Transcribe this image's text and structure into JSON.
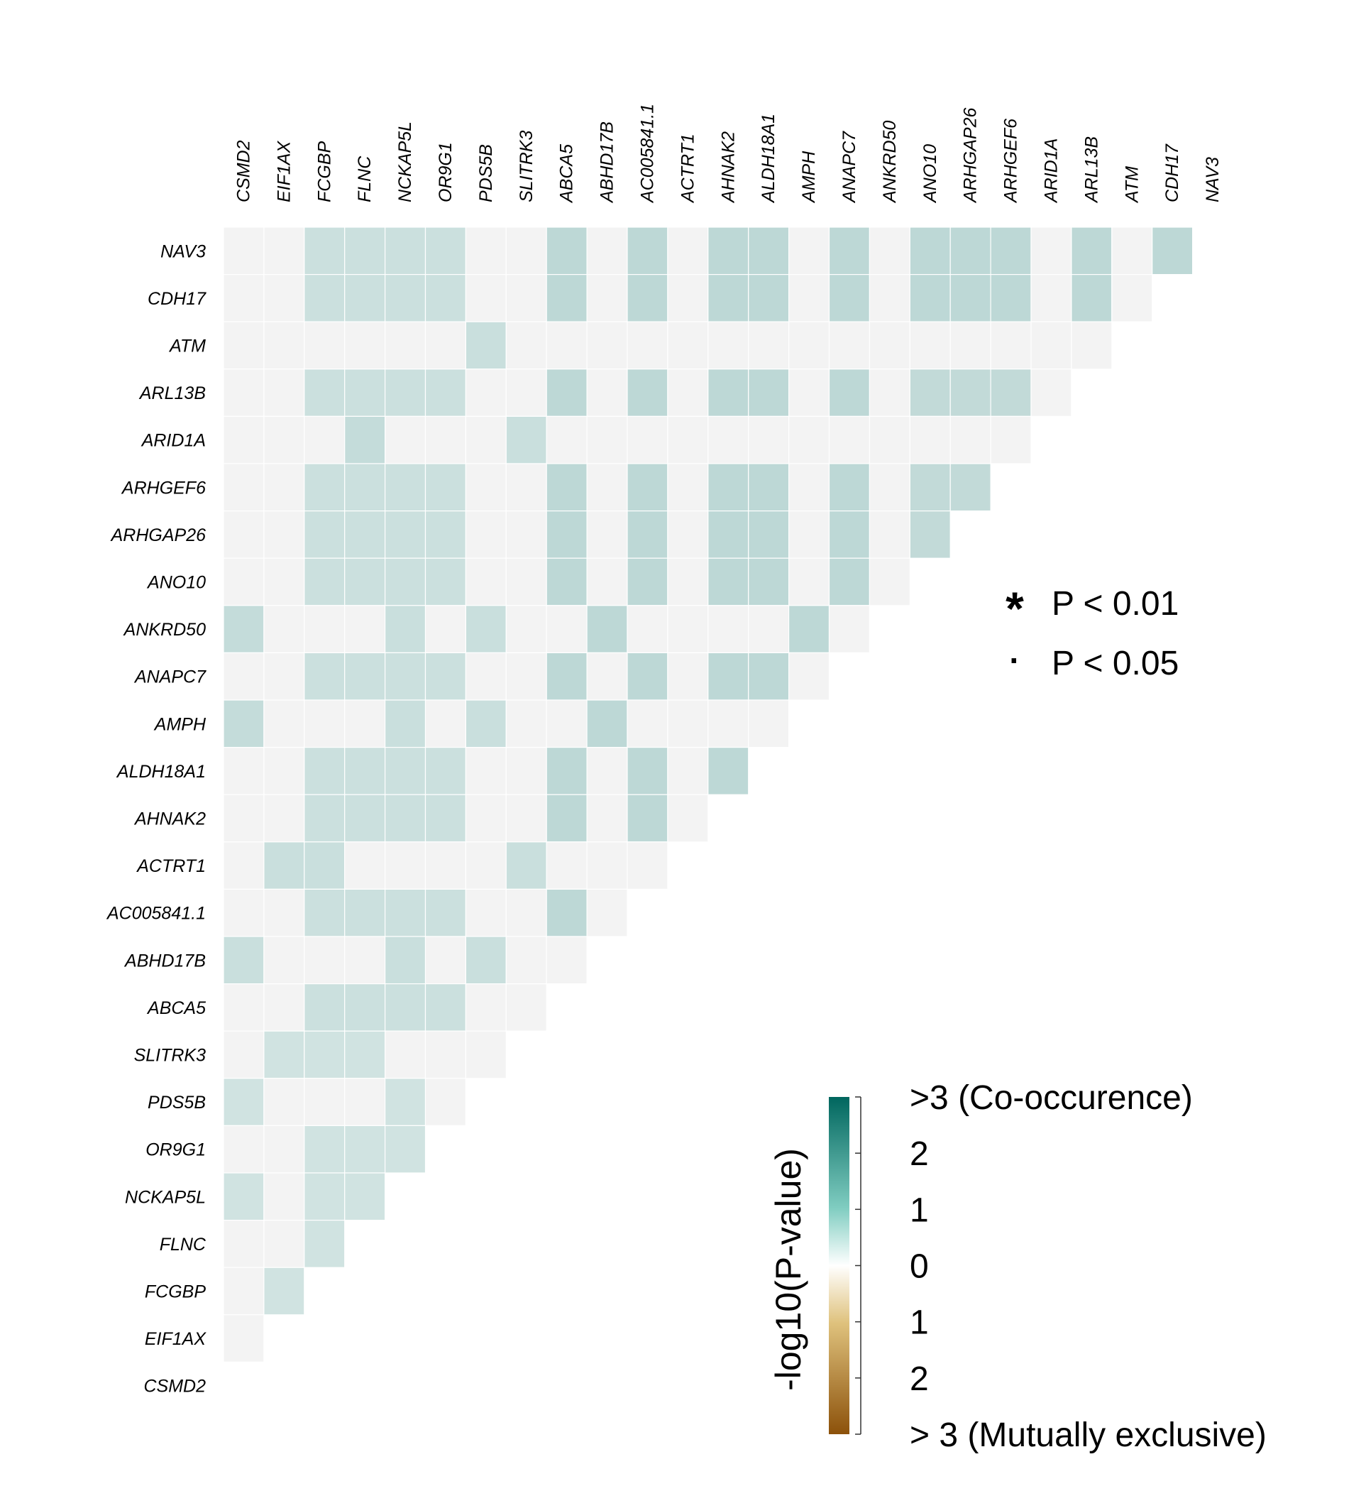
{
  "chart_data": {
    "type": "heatmap",
    "description_layout": "lower-triangular gene co-occurrence matrix",
    "columns": [
      "CSMD2",
      "EIF1AX",
      "FCGBP",
      "FLNC",
      "NCKAP5L",
      "OR9G1",
      "PDS5B",
      "SLITRK3",
      "ABCA5",
      "ABHD17B",
      "AC005841.1",
      "ACTRT1",
      "AHNAK2",
      "ALDH18A1",
      "AMPH",
      "ANAPC7",
      "ANKRD50",
      "ANO10",
      "ARHGAP26",
      "ARHGEF6",
      "ARID1A",
      "ARL13B",
      "ATM",
      "CDH17",
      "NAV3"
    ],
    "rows": [
      "NAV3",
      "CDH17",
      "ATM",
      "ARL13B",
      "ARID1A",
      "ARHGEF6",
      "ARHGAP26",
      "ANO10",
      "ANKRD50",
      "ANAPC7",
      "AMPH",
      "ALDH18A1",
      "AHNAK2",
      "ACTRT1",
      "AC005841.1",
      "ABHD17B",
      "ABCA5",
      "SLITRK3",
      "PDS5B",
      "OR9G1",
      "NCKAP5L",
      "FLNC",
      "FCGBP",
      "EIF1AX",
      "CSMD2"
    ],
    "values": [
      [
        0,
        0,
        0.45,
        0.45,
        0.45,
        0.45,
        0,
        0,
        0.75,
        0,
        0.75,
        0,
        0.75,
        0.75,
        0,
        0.75,
        0,
        0.75,
        0.75,
        0.75,
        0,
        0.75,
        0,
        0.75
      ],
      [
        0,
        0,
        0.45,
        0.45,
        0.45,
        0.45,
        0,
        0,
        0.75,
        0,
        0.75,
        0,
        0.75,
        0.75,
        0,
        0.75,
        0,
        0.75,
        0.75,
        0.75,
        0,
        0.75,
        0
      ],
      [
        0,
        0,
        0,
        0,
        0,
        0,
        0.5,
        0,
        0,
        0,
        0,
        0,
        0,
        0,
        0,
        0,
        0,
        0,
        0,
        0,
        0,
        0
      ],
      [
        0,
        0,
        0.45,
        0.45,
        0.45,
        0.45,
        0,
        0,
        0.75,
        0,
        0.75,
        0,
        0.75,
        0.75,
        0,
        0.75,
        0,
        0.65,
        0.65,
        0.65,
        0
      ],
      [
        0,
        0,
        0,
        0.6,
        0,
        0,
        0,
        0.5,
        0,
        0,
        0,
        0,
        0,
        0,
        0,
        0,
        0,
        0,
        0,
        0
      ],
      [
        0,
        0,
        0.45,
        0.45,
        0.45,
        0.45,
        0,
        0,
        0.75,
        0,
        0.75,
        0,
        0.75,
        0.75,
        0,
        0.75,
        0,
        0.65,
        0.65
      ],
      [
        0,
        0,
        0.45,
        0.45,
        0.45,
        0.45,
        0,
        0,
        0.75,
        0,
        0.75,
        0,
        0.75,
        0.75,
        0,
        0.75,
        0,
        0.65
      ],
      [
        0,
        0,
        0.45,
        0.45,
        0.45,
        0.45,
        0,
        0,
        0.75,
        0,
        0.75,
        0,
        0.75,
        0.75,
        0,
        0.75,
        0
      ],
      [
        0.6,
        0,
        0,
        0,
        0.5,
        0,
        0.5,
        0,
        0,
        0.75,
        0,
        0,
        0,
        0,
        0.75,
        0
      ],
      [
        0,
        0,
        0.45,
        0.45,
        0.45,
        0.45,
        0,
        0,
        0.75,
        0,
        0.75,
        0,
        0.75,
        0.75,
        0
      ],
      [
        0.6,
        0,
        0,
        0,
        0.5,
        0,
        0.5,
        0,
        0,
        0.75,
        0,
        0,
        0,
        0
      ],
      [
        0,
        0,
        0.45,
        0.45,
        0.45,
        0.45,
        0,
        0,
        0.75,
        0,
        0.75,
        0,
        0.75
      ],
      [
        0,
        0,
        0.45,
        0.45,
        0.45,
        0.45,
        0,
        0,
        0.75,
        0,
        0.75,
        0
      ],
      [
        0,
        0.5,
        0.5,
        0,
        0,
        0,
        0,
        0.5,
        0,
        0,
        0
      ],
      [
        0,
        0,
        0.45,
        0.45,
        0.45,
        0.45,
        0,
        0,
        0.75,
        0
      ],
      [
        0.5,
        0,
        0,
        0,
        0.5,
        0,
        0.5,
        0,
        0
      ],
      [
        0,
        0,
        0.45,
        0.45,
        0.45,
        0.45,
        0,
        0
      ],
      [
        0,
        0.35,
        0.35,
        0.35,
        0,
        0,
        0
      ],
      [
        0.35,
        0,
        0,
        0,
        0.35,
        0
      ],
      [
        0,
        0,
        0.35,
        0.35,
        0.35
      ],
      [
        0.35,
        0,
        0.35,
        0.35
      ],
      [
        0,
        0,
        0.35
      ],
      [
        0,
        0.35
      ],
      [
        0
      ],
      []
    ],
    "significance_legend": [
      {
        "symbol": "*",
        "label": "P < 0.01"
      },
      {
        "symbol": "·",
        "label": "P < 0.05"
      }
    ],
    "colorbar": {
      "title": "-log10(P-value)",
      "range": [
        -3,
        3
      ],
      "tick_values": [
        3,
        2,
        1,
        0,
        -1,
        -2,
        -3
      ],
      "tick_labels": [
        ">3 (Co-occurence)",
        "2",
        "1",
        "0",
        "1",
        "2",
        "> 3 (Mutually exclusive)"
      ],
      "colors": {
        "co_occurrence_max": "#00665e",
        "mid": "#ffffff",
        "exclusive_max": "#9a5b1a",
        "zero_cell": "#f3f3f3"
      }
    }
  }
}
